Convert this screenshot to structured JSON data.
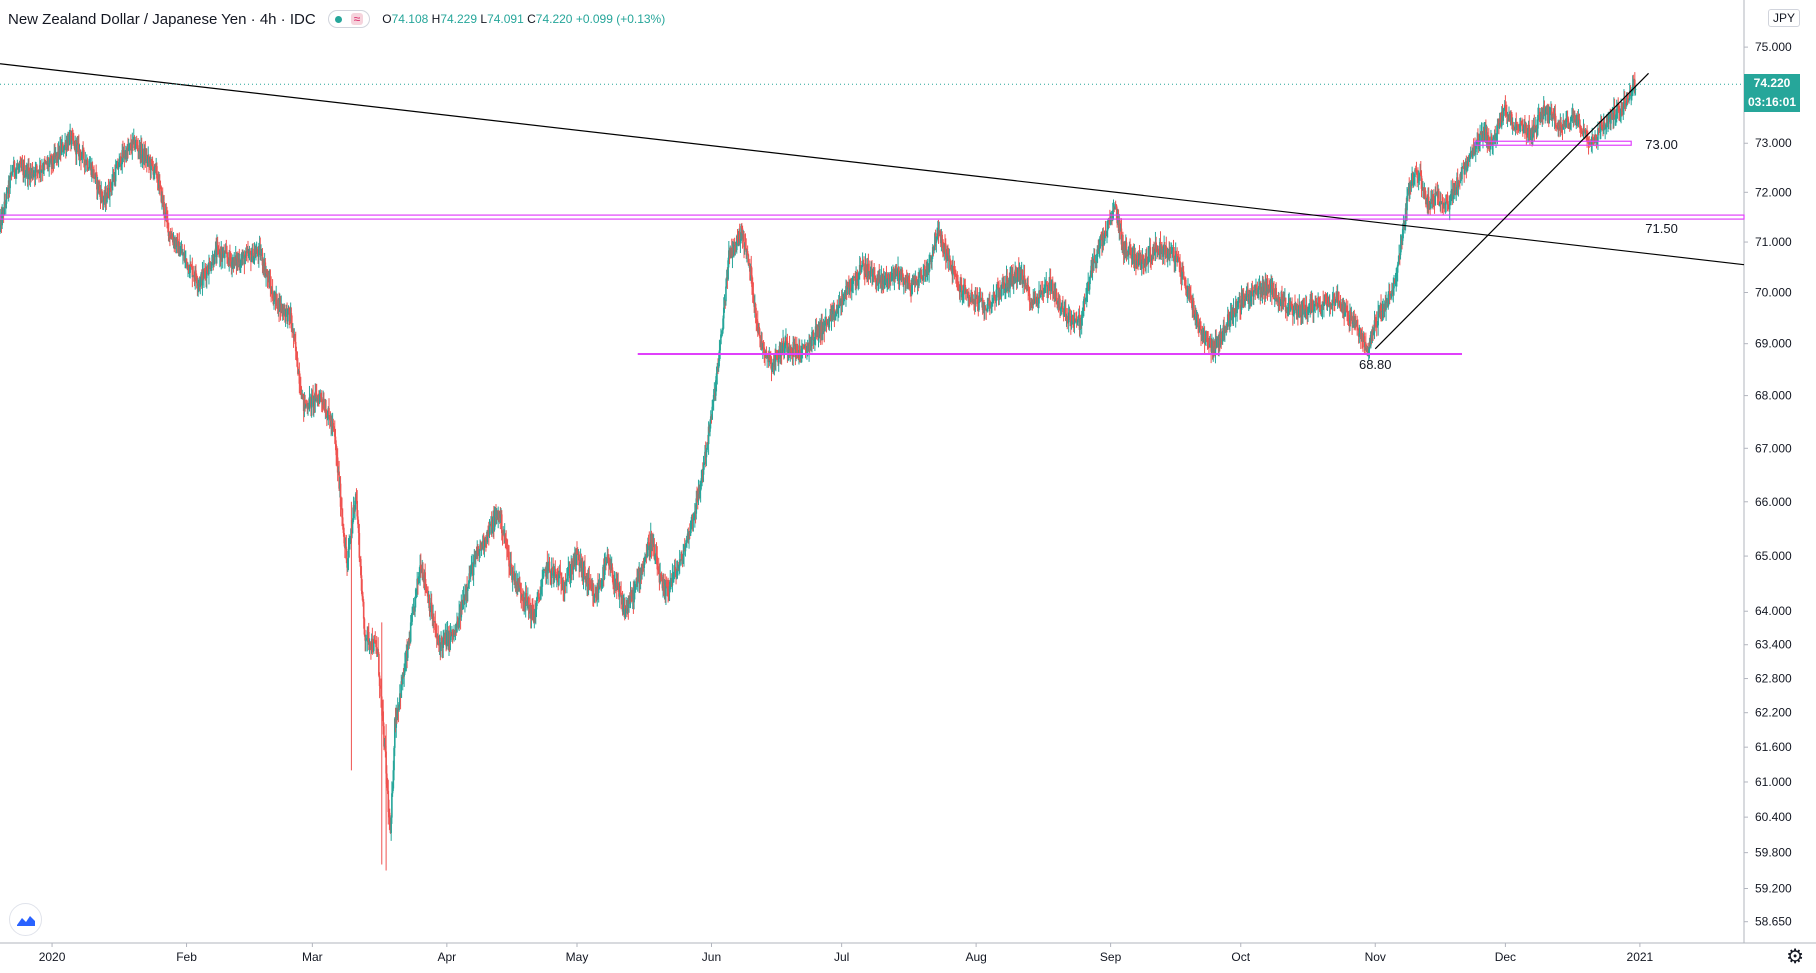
{
  "header": {
    "symbol": "New Zealand Dollar / Japanese Yen · 4h · IDC",
    "wave_icon": "≈",
    "open_label": "O",
    "open": "74.108",
    "high_label": "H",
    "high": "74.229",
    "low_label": "L",
    "low": "74.091",
    "close_label": "C",
    "close": "74.220",
    "change": "+0.099 (+0.13%)"
  },
  "price_axis": {
    "currency": "JPY",
    "current_price": "74.220",
    "countdown": "03:16:01"
  },
  "colors": {
    "up": "#26a69a",
    "down": "#ef5350",
    "level_line": "#e040fb",
    "trend_line": "#000000",
    "accent": "#26a69a"
  },
  "icons": {
    "logo": "tradingview-logo-icon",
    "settings": "gear-icon"
  },
  "chart_data": {
    "type": "candlestick",
    "title": "New Zealand Dollar / Japanese Yen · 4h · IDC",
    "x_range": [
      "2019-12-20",
      "2021-01-25"
    ],
    "y_range": [
      58.3,
      76.0
    ],
    "y_scale": "log",
    "x_ticks": [
      {
        "date": "2020-01-01",
        "label": "2020"
      },
      {
        "date": "2020-02-01",
        "label": "Feb"
      },
      {
        "date": "2020-03-01",
        "label": "Mar"
      },
      {
        "date": "2020-04-01",
        "label": "Apr"
      },
      {
        "date": "2020-05-01",
        "label": "May"
      },
      {
        "date": "2020-06-01",
        "label": "Jun"
      },
      {
        "date": "2020-07-01",
        "label": "Jul"
      },
      {
        "date": "2020-08-01",
        "label": "Aug"
      },
      {
        "date": "2020-09-01",
        "label": "Sep"
      },
      {
        "date": "2020-10-01",
        "label": "Oct"
      },
      {
        "date": "2020-11-01",
        "label": "Nov"
      },
      {
        "date": "2020-12-01",
        "label": "Dec"
      },
      {
        "date": "2021-01-01",
        "label": "2021"
      }
    ],
    "y_ticks": [
      {
        "value": 75.0,
        "label": "75.000"
      },
      {
        "value": 73.0,
        "label": "73.000"
      },
      {
        "value": 72.0,
        "label": "72.000"
      },
      {
        "value": 71.0,
        "label": "71.000"
      },
      {
        "value": 70.0,
        "label": "70.000"
      },
      {
        "value": 69.0,
        "label": "69.000"
      },
      {
        "value": 68.0,
        "label": "68.000"
      },
      {
        "value": 67.0,
        "label": "67.000"
      },
      {
        "value": 66.0,
        "label": "66.000"
      },
      {
        "value": 65.0,
        "label": "65.000"
      },
      {
        "value": 64.0,
        "label": "64.000"
      },
      {
        "value": 63.4,
        "label": "63.400"
      },
      {
        "value": 62.8,
        "label": "62.800"
      },
      {
        "value": 62.2,
        "label": "62.200"
      },
      {
        "value": 61.6,
        "label": "61.600"
      },
      {
        "value": 61.0,
        "label": "61.000"
      },
      {
        "value": 60.4,
        "label": "60.400"
      },
      {
        "value": 59.8,
        "label": "59.800"
      },
      {
        "value": 59.2,
        "label": "59.200"
      },
      {
        "value": 58.65,
        "label": "58.650"
      }
    ],
    "price_path": [
      [
        "2019-12-20",
        71.3
      ],
      [
        "2019-12-23",
        72.5
      ],
      [
        "2019-12-27",
        72.4
      ],
      [
        "2020-01-01",
        72.6
      ],
      [
        "2020-01-05",
        73.1
      ],
      [
        "2020-01-10",
        72.5
      ],
      [
        "2020-01-13",
        71.8
      ],
      [
        "2020-01-17",
        72.7
      ],
      [
        "2020-01-20",
        73.0
      ],
      [
        "2020-01-25",
        72.4
      ],
      [
        "2020-01-28",
        71.2
      ],
      [
        "2020-02-01",
        70.6
      ],
      [
        "2020-02-04",
        70.2
      ],
      [
        "2020-02-08",
        70.8
      ],
      [
        "2020-02-12",
        70.6
      ],
      [
        "2020-02-18",
        70.8
      ],
      [
        "2020-02-21",
        69.9
      ],
      [
        "2020-02-25",
        69.5
      ],
      [
        "2020-02-28",
        67.8
      ],
      [
        "2020-03-03",
        68.0
      ],
      [
        "2020-03-06",
        67.3
      ],
      [
        "2020-03-09",
        64.8
      ],
      [
        "2020-03-11",
        66.2
      ],
      [
        "2020-03-13",
        63.6
      ],
      [
        "2020-03-16",
        63.3
      ],
      [
        "2020-03-18",
        61.2
      ],
      [
        "2020-03-19",
        60.0
      ],
      [
        "2020-03-20",
        62.0
      ],
      [
        "2020-03-23",
        63.3
      ],
      [
        "2020-03-26",
        64.9
      ],
      [
        "2020-03-30",
        63.4
      ],
      [
        "2020-04-03",
        63.6
      ],
      [
        "2020-04-06",
        64.6
      ],
      [
        "2020-04-09",
        65.2
      ],
      [
        "2020-04-13",
        65.8
      ],
      [
        "2020-04-16",
        64.7
      ],
      [
        "2020-04-21",
        63.9
      ],
      [
        "2020-04-24",
        64.8
      ],
      [
        "2020-04-28",
        64.5
      ],
      [
        "2020-05-01",
        65.0
      ],
      [
        "2020-05-05",
        64.2
      ],
      [
        "2020-05-08",
        64.9
      ],
      [
        "2020-05-12",
        64.0
      ],
      [
        "2020-05-14",
        64.3
      ],
      [
        "2020-05-18",
        65.3
      ],
      [
        "2020-05-21",
        64.3
      ],
      [
        "2020-05-25",
        64.9
      ],
      [
        "2020-05-27",
        65.5
      ],
      [
        "2020-05-29",
        66.1
      ],
      [
        "2020-06-01",
        67.6
      ],
      [
        "2020-06-03",
        68.9
      ],
      [
        "2020-06-05",
        70.7
      ],
      [
        "2020-06-08",
        71.2
      ],
      [
        "2020-06-10",
        70.4
      ],
      [
        "2020-06-12",
        69.1
      ],
      [
        "2020-06-15",
        68.6
      ],
      [
        "2020-06-18",
        69.0
      ],
      [
        "2020-06-22",
        68.8
      ],
      [
        "2020-06-25",
        69.2
      ],
      [
        "2020-06-29",
        69.5
      ],
      [
        "2020-07-02",
        70.0
      ],
      [
        "2020-07-06",
        70.5
      ],
      [
        "2020-07-10",
        70.2
      ],
      [
        "2020-07-14",
        70.4
      ],
      [
        "2020-07-17",
        70.1
      ],
      [
        "2020-07-21",
        70.5
      ],
      [
        "2020-07-23",
        71.2
      ],
      [
        "2020-07-25",
        70.8
      ],
      [
        "2020-07-28",
        70.1
      ],
      [
        "2020-08-03",
        69.7
      ],
      [
        "2020-08-07",
        70.1
      ],
      [
        "2020-08-11",
        70.4
      ],
      [
        "2020-08-14",
        69.8
      ],
      [
        "2020-08-18",
        70.2
      ],
      [
        "2020-08-21",
        69.6
      ],
      [
        "2020-08-25",
        69.4
      ],
      [
        "2020-08-28",
        70.6
      ],
      [
        "2020-08-31",
        71.2
      ],
      [
        "2020-09-02",
        71.7
      ],
      [
        "2020-09-04",
        70.9
      ],
      [
        "2020-09-08",
        70.6
      ],
      [
        "2020-09-12",
        70.9
      ],
      [
        "2020-09-16",
        70.7
      ],
      [
        "2020-09-19",
        70.0
      ],
      [
        "2020-09-22",
        69.2
      ],
      [
        "2020-09-25",
        68.9
      ],
      [
        "2020-09-29",
        69.6
      ],
      [
        "2020-10-02",
        69.9
      ],
      [
        "2020-10-06",
        70.1
      ],
      [
        "2020-10-09",
        70.0
      ],
      [
        "2020-10-13",
        69.6
      ],
      [
        "2020-10-16",
        69.7
      ],
      [
        "2020-10-20",
        69.8
      ],
      [
        "2020-10-23",
        69.9
      ],
      [
        "2020-10-27",
        69.4
      ],
      [
        "2020-10-30",
        68.9
      ],
      [
        "2020-11-02",
        69.6
      ],
      [
        "2020-11-05",
        70.0
      ],
      [
        "2020-11-06",
        70.4
      ],
      [
        "2020-11-09",
        72.2
      ],
      [
        "2020-11-11",
        72.4
      ],
      [
        "2020-11-13",
        71.8
      ],
      [
        "2020-11-16",
        71.9
      ],
      [
        "2020-11-18",
        71.8
      ],
      [
        "2020-11-20",
        72.2
      ],
      [
        "2020-11-23",
        72.7
      ],
      [
        "2020-11-26",
        73.2
      ],
      [
        "2020-11-28",
        73.0
      ],
      [
        "2020-12-01",
        73.7
      ],
      [
        "2020-12-03",
        73.4
      ],
      [
        "2020-12-07",
        73.2
      ],
      [
        "2020-12-10",
        73.7
      ],
      [
        "2020-12-14",
        73.3
      ],
      [
        "2020-12-17",
        73.6
      ],
      [
        "2020-12-21",
        73.0
      ],
      [
        "2020-12-23",
        73.3
      ],
      [
        "2020-12-28",
        73.8
      ],
      [
        "2020-12-31",
        74.22
      ]
    ],
    "horizontal_levels": [
      {
        "price": 73.0,
        "label": "73.00",
        "from": "2020-11-24",
        "to": "2020-12-30"
      },
      {
        "price": 71.5,
        "label": "71.50",
        "from": "2019-12-20",
        "to": "2021-01-25"
      },
      {
        "price": 68.8,
        "label": "68.80",
        "from": "2020-05-15",
        "to": "2020-11-21"
      }
    ],
    "trend_lines": [
      {
        "from": [
          "2019-12-20",
          74.65
        ],
        "to": [
          "2021-01-25",
          70.55
        ]
      },
      {
        "from": [
          "2020-11-01",
          68.9
        ],
        "to": [
          "2021-01-03",
          74.45
        ]
      }
    ]
  }
}
